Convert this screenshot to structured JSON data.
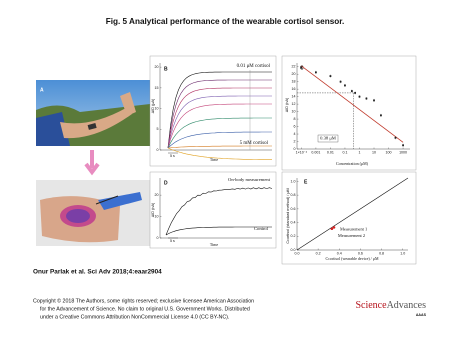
{
  "title": "Fig. 5 Analytical performance of the wearable cortisol sensor.",
  "panels": {
    "a": {
      "label": "A"
    },
    "b": {
      "label": "B",
      "top_note": "0.01 μM cortisol",
      "bottom_note": "5 mM cortisol",
      "x_label": "Time",
      "scale_bar": "5 s",
      "y_label": "ΔID (μA)",
      "ylim": [
        0,
        21
      ],
      "yticks": [
        0,
        5,
        10,
        15,
        20
      ]
    },
    "c": {
      "label": "C",
      "type": "scatter",
      "x_label": "Concentration (μM)",
      "y_label": "ΔID (nA)",
      "xscale": "log",
      "xlim": [
        5e-05,
        3000
      ],
      "xticks": [
        {
          "value": 0.0001,
          "label": "1×10⁻⁴"
        },
        0.001,
        0.01,
        0.1,
        1,
        10,
        100,
        1000
      ],
      "ylim": [
        0,
        23
      ],
      "yticks": [
        0,
        2,
        4,
        6,
        8,
        10,
        12,
        14,
        16,
        18,
        20,
        22
      ],
      "x": [
        0.0001,
        0.001,
        0.01,
        0.05,
        0.1,
        0.3,
        0.5,
        1,
        3,
        10,
        30,
        300,
        1000
      ],
      "values": [
        21.8,
        20.5,
        19.5,
        18,
        17,
        15.5,
        15,
        14,
        13.5,
        13,
        9,
        3,
        1
      ],
      "color": "#222222",
      "fit": {
        "x": [
          0.0001,
          1000
        ],
        "values": [
          22.2,
          1.8
        ],
        "color": "#c0392b"
      },
      "lod": {
        "label": "0.38 μM",
        "x": 0.38,
        "value": 15
      }
    },
    "d": {
      "label": "D",
      "top_note": "On-body measurement",
      "bottom_note": "Control",
      "x_label": "Time",
      "scale_bar": "5 s",
      "y_label": "ΔID (nA)",
      "ylim": [
        0,
        28
      ],
      "yticks": [
        0,
        10,
        20
      ]
    },
    "e": {
      "label": "E",
      "type": "scatter",
      "x_label": "Ccortisol (wearable device) / μM",
      "y_label": "Ccortisol (standard method) / μM",
      "xlim": [
        0,
        1.05
      ],
      "ylim": [
        0,
        1.05
      ],
      "xticks": [
        {
          "value": 0,
          "label": "0.0"
        },
        0.2,
        0.4,
        0.6,
        0.8,
        {
          "value": 1,
          "label": "1.0"
        }
      ],
      "yticks": [
        {
          "value": 0,
          "label": "0.0"
        },
        0.2,
        0.4,
        0.6,
        0.8,
        {
          "value": 1,
          "label": "1.0"
        }
      ],
      "x": [
        0.35,
        0.33
      ],
      "values": [
        0.33,
        0.31
      ],
      "color": "#d42020",
      "point_labels": [
        "Measurement 1",
        "Measurement 2"
      ]
    }
  },
  "footer": {
    "citation": "Onur Parlak et al. Sci Adv 2018;4:eaar2904",
    "copyright": [
      "Copyright © 2018 The Authors, some rights reserved; exclusive licensee American Association",
      "for the Advancement of Science. No claim to original U.S. Government Works. Distributed",
      "under a Creative Commons Attribution NonCommercial License 4.0 (CC BY-NC)."
    ],
    "logo": [
      "Science",
      "Advances"
    ],
    "publisher": "AAAS"
  }
}
